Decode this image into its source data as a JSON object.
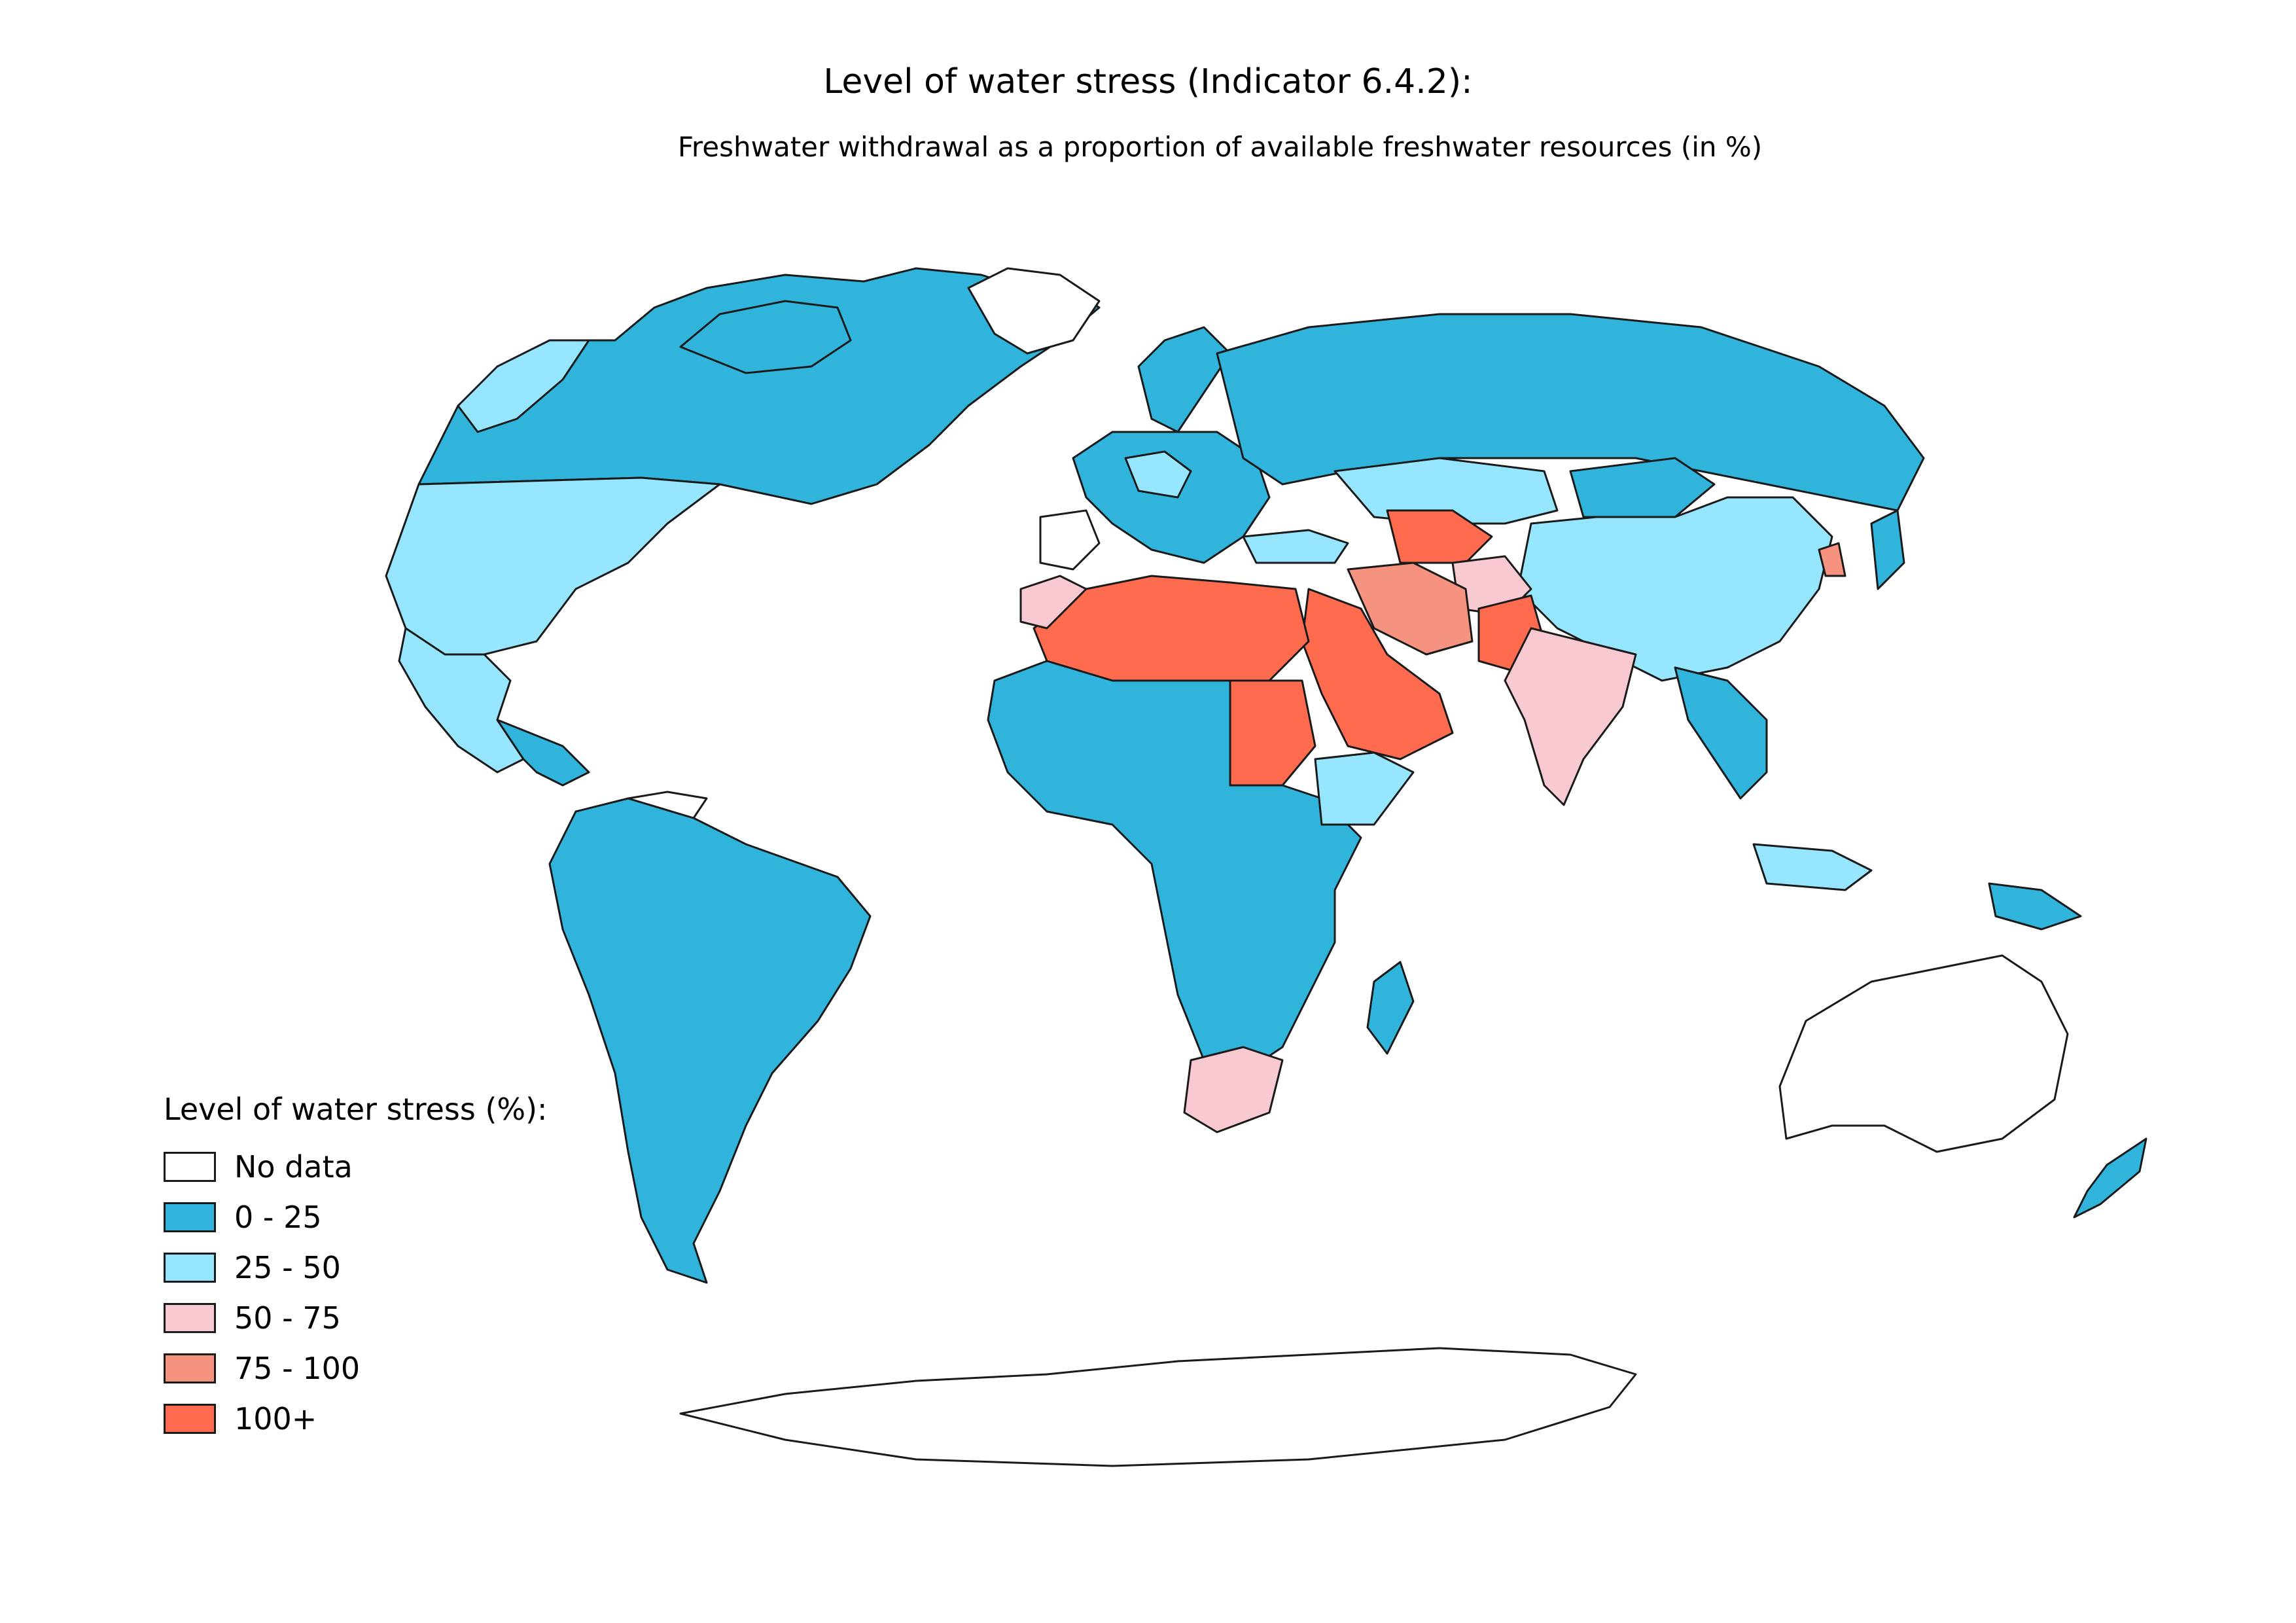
{
  "title": "Level of water stress (Indicator 6.4.2):",
  "subtitle": "Freshwater withdrawal as a proportion of available freshwater resources (in %)",
  "legend": {
    "title": "Level of water stress (%):",
    "items": [
      {
        "label": "No data",
        "color": "#ffffff"
      },
      {
        "label": "0 - 25",
        "color": "#31b4dc"
      },
      {
        "label": "25 - 50",
        "color": "#97e6ff"
      },
      {
        "label": "50 - 75",
        "color": "#f8c9d1"
      },
      {
        "label": "75 - 100",
        "color": "#f59380"
      },
      {
        "label": "100+",
        "color": "#fe6b4f"
      }
    ]
  }
}
